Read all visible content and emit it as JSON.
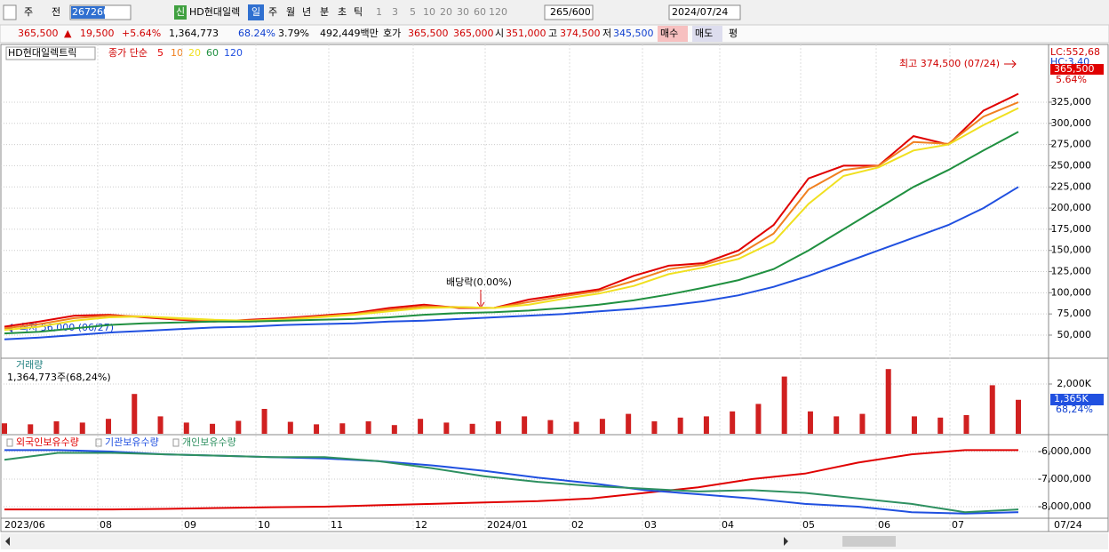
{
  "toolbar": {
    "period_type": "주",
    "prev": "전",
    "code": "267260",
    "new": "신",
    "name": "HD현대일렉",
    "periods": [
      "일",
      "주",
      "월",
      "년",
      "분",
      "초",
      "틱"
    ],
    "intervals": [
      "1",
      "3",
      "5",
      "10",
      "20",
      "30",
      "60",
      "120"
    ],
    "count": "265",
    "max": "/600",
    "date": "2024/07/24"
  },
  "info_bar": {
    "price": "365,500",
    "arrow": "▲",
    "change": "19,500",
    "change_pct": "+5.64%",
    "volume": "1,364,773",
    "volume_ratio": "68.24%",
    "turnover": "3.79%",
    "amount": "492,449백만",
    "quote_label": "호가",
    "ask": "365,500",
    "bid": "365,000",
    "open_label": "시",
    "open": "351,000",
    "high_label": "고",
    "high": "374,500",
    "low_label": "저",
    "low": "345,500",
    "buy": "매수",
    "sell": "매도",
    "avg": "평"
  },
  "chart_data": [
    {
      "type": "line",
      "title": "HD현대일렉트릭",
      "subtitle": "종가 단순",
      "series": [
        {
          "name": "5",
          "color": "#e00000",
          "values": [
            60000,
            66000,
            73000,
            74000,
            71000,
            68000,
            66000,
            68000,
            70000,
            73000,
            76000,
            82000,
            86000,
            82000,
            82000,
            92000,
            98000,
            104000,
            120000,
            132000,
            135000,
            150000,
            180000,
            235000,
            250000,
            250000,
            285000,
            275000,
            315000,
            335000
          ]
        },
        {
          "name": "10",
          "color": "#f08020",
          "values": [
            58000,
            63000,
            70000,
            73000,
            72000,
            69000,
            67000,
            67000,
            69000,
            72000,
            75000,
            80000,
            84000,
            83000,
            82000,
            89000,
            96000,
            102000,
            114000,
            128000,
            133000,
            145000,
            170000,
            222000,
            245000,
            250000,
            278000,
            276000,
            308000,
            325000
          ]
        },
        {
          "name": "20",
          "color": "#f0e020",
          "values": [
            56000,
            60000,
            67000,
            71000,
            72000,
            70000,
            68000,
            67000,
            68000,
            71000,
            74000,
            78000,
            82000,
            83000,
            82000,
            86000,
            93000,
            99000,
            108000,
            122000,
            130000,
            140000,
            160000,
            205000,
            238000,
            248000,
            268000,
            275000,
            298000,
            318000
          ]
        },
        {
          "name": "60",
          "color": "#209040",
          "values": [
            52000,
            54000,
            58000,
            62000,
            64000,
            65000,
            66000,
            66000,
            67000,
            68000,
            69000,
            71000,
            74000,
            76000,
            77000,
            79000,
            82000,
            86000,
            91000,
            98000,
            106000,
            115000,
            128000,
            150000,
            175000,
            200000,
            225000,
            245000,
            268000,
            290000
          ]
        },
        {
          "name": "120",
          "color": "#2050e0",
          "values": [
            45000,
            47000,
            50000,
            53000,
            55000,
            57000,
            59000,
            60000,
            62000,
            63000,
            64000,
            66000,
            67000,
            69000,
            71000,
            73000,
            75000,
            78000,
            81000,
            85000,
            90000,
            97000,
            107000,
            120000,
            135000,
            150000,
            165000,
            180000,
            200000,
            225000
          ]
        }
      ],
      "ylim": [
        22700,
        393200
      ],
      "yticks": [
        {
          "value": 50000,
          "label": "50,000"
        },
        {
          "value": 75000,
          "label": "75,000"
        },
        {
          "value": 100000,
          "label": "100,000"
        },
        {
          "value": 125000,
          "label": "125,000"
        },
        {
          "value": 150000,
          "label": "150,000"
        },
        {
          "value": 175000,
          "label": "175,000"
        },
        {
          "value": 200000,
          "label": "200,000"
        },
        {
          "value": 225000,
          "label": "225,000"
        },
        {
          "value": 250000,
          "label": "250,000"
        },
        {
          "value": 275000,
          "label": "275,000"
        },
        {
          "value": 300000,
          "label": "300,000"
        },
        {
          "value": 325000,
          "label": "325,000"
        }
      ],
      "grid": true,
      "annotations": {
        "high": "최고 374,500 (07/24)",
        "low": "최저 56,000 (06/27)",
        "event": "배당락(0.00%)"
      },
      "axis_labels": [
        "LC:552,68",
        "HC:3,40"
      ],
      "last_price": "365,500",
      "last_change": "5.64%"
    },
    {
      "type": "bar",
      "title": "거래량",
      "subtitle": "1,364,773주(68,24%)",
      "color": "#d02020",
      "values": [
        420000,
        380000,
        500000,
        450000,
        600000,
        1600000,
        700000,
        450000,
        400000,
        520000,
        1000000,
        480000,
        380000,
        420000,
        500000,
        350000,
        600000,
        450000,
        400000,
        500000,
        700000,
        550000,
        480000,
        600000,
        800000,
        500000,
        650000,
        700000,
        900000,
        1200000,
        2300000,
        900000,
        700000,
        800000,
        2600000,
        700000,
        650000,
        750000,
        1950000,
        1365000
      ],
      "ylim": [
        0,
        3000000
      ],
      "yticks": [
        {
          "value": 2000000,
          "label": "2,000K"
        }
      ],
      "grid": true,
      "last_value": "1,365K",
      "last_ratio": "68,24%"
    },
    {
      "type": "line",
      "series": [
        {
          "name": "외국인보유수량",
          "color": "#e00000",
          "values": [
            -8100000,
            -8100000,
            -8100000,
            -8080000,
            -8050000,
            -8020000,
            -8000000,
            -7950000,
            -7900000,
            -7850000,
            -7800000,
            -7700000,
            -7500000,
            -7300000,
            -7000000,
            -6800000,
            -6400000,
            -6100000,
            -5950000,
            -5950000
          ]
        },
        {
          "name": "기관보유수량",
          "color": "#2050e0",
          "values": [
            -5950000,
            -5950000,
            -6000000,
            -6100000,
            -6150000,
            -6200000,
            -6250000,
            -6350000,
            -6500000,
            -6700000,
            -6950000,
            -7150000,
            -7400000,
            -7550000,
            -7700000,
            -7900000,
            -8000000,
            -8200000,
            -8250000,
            -8200000
          ]
        },
        {
          "name": "개인보유수량",
          "color": "#2e9060",
          "values": [
            -6300000,
            -6050000,
            -6050000,
            -6100000,
            -6150000,
            -6200000,
            -6200000,
            -6350000,
            -6600000,
            -6900000,
            -7100000,
            -7250000,
            -7350000,
            -7450000,
            -7400000,
            -7500000,
            -7700000,
            -7900000,
            -8200000,
            -8100000
          ]
        }
      ],
      "ylim": [
        -8420000,
        -5420000
      ],
      "yticks": [
        {
          "value": -6000000,
          "label": "-6,000,000"
        },
        {
          "value": -7000000,
          "label": "-7,000,000"
        },
        {
          "value": -8000000,
          "label": "-8,000,000"
        }
      ],
      "grid": true
    }
  ],
  "x_axis": {
    "labels": [
      "2023/06",
      "08",
      "09",
      "10",
      "11",
      "12",
      "2024/01",
      "02",
      "03",
      "04",
      "05",
      "06",
      "07"
    ],
    "last_date": "07/24"
  }
}
